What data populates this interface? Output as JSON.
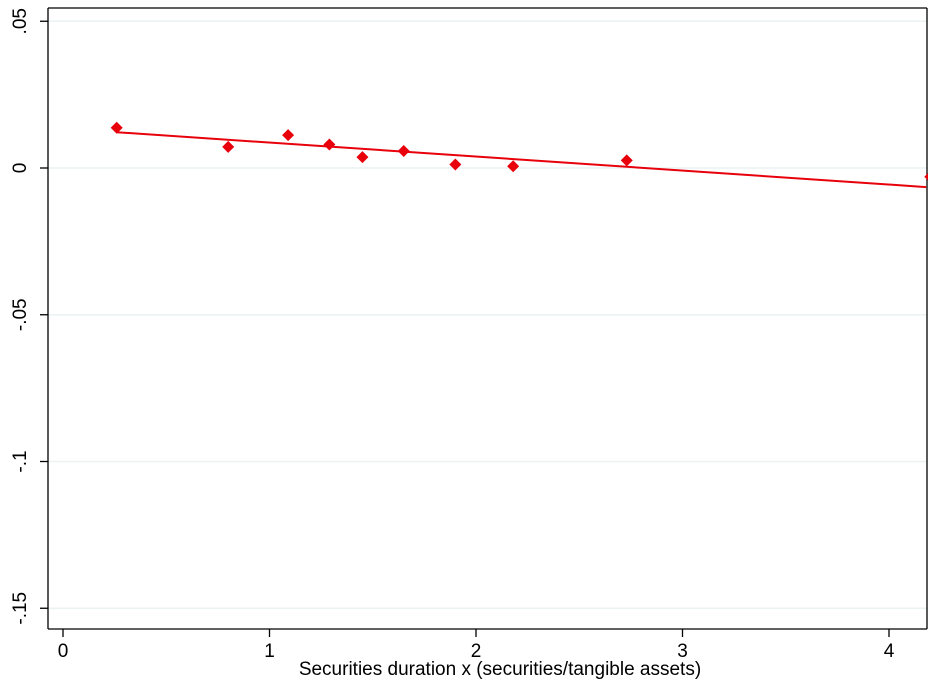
{
  "chart_data": {
    "type": "scatter",
    "title": "",
    "xlabel": "Securities duration x (securities/tangible assets)",
    "ylabel": "",
    "xlim": [
      0,
      4.2
    ],
    "ylim": [
      -0.155,
      0.055
    ],
    "x_ticks": [
      {
        "value": 0,
        "label": "0"
      },
      {
        "value": 1,
        "label": "1"
      },
      {
        "value": 2,
        "label": "2"
      },
      {
        "value": 3,
        "label": "3"
      },
      {
        "value": 4,
        "label": "4"
      }
    ],
    "y_ticks": [
      {
        "value": 0.05,
        "label": ".05"
      },
      {
        "value": 0,
        "label": "0"
      },
      {
        "value": -0.05,
        "label": "-.05"
      },
      {
        "value": -0.1,
        "label": "-.1"
      },
      {
        "value": -0.15,
        "label": "-.15"
      }
    ],
    "grid": "horizontal",
    "series": [
      {
        "kind": "points",
        "marker": "diamond",
        "color": "#e8000b",
        "x": [
          0.26,
          0.8,
          1.09,
          1.29,
          1.45,
          1.65,
          1.9,
          2.18,
          2.73,
          4.2
        ],
        "y": [
          0.0137,
          0.0072,
          0.0112,
          0.008,
          0.0037,
          0.0058,
          0.0012,
          0.0006,
          0.0026,
          -0.003
        ]
      },
      {
        "kind": "fit-line",
        "color": "#e8000b",
        "x": [
          0.26,
          4.18
        ],
        "y": [
          0.0122,
          -0.0065
        ]
      }
    ]
  }
}
